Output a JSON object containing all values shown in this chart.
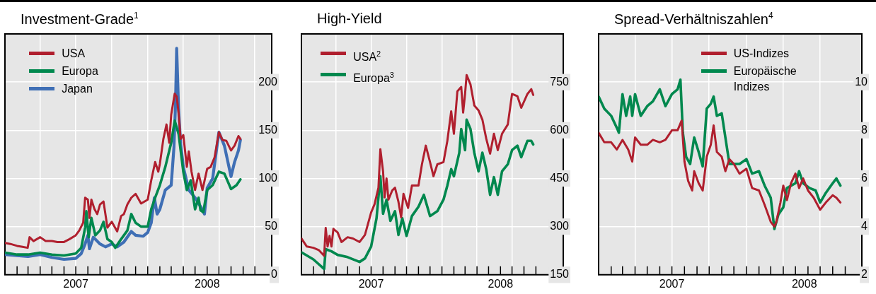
{
  "chart_data": [
    {
      "type": "line",
      "title": "Investment-Grade$^{1}$",
      "legend": "top left",
      "grid": true,
      "xlim": [
        "2007-01-01",
        "2008-11-13"
      ],
      "xticks": [
        {
          "value": "2007-02-01",
          "label": null
        },
        {
          "value": "2007-03-01",
          "label": null
        },
        {
          "value": "2007-04-01",
          "label": null
        },
        {
          "value": "2007-05-01",
          "label": null
        },
        {
          "value": "2007-06-01",
          "label": null
        },
        {
          "value": "2007-07-01",
          "label": "2007"
        },
        {
          "value": "2007-08-01",
          "label": null
        },
        {
          "value": "2007-09-01",
          "label": null
        },
        {
          "value": "2007-10-01",
          "label": null
        },
        {
          "value": "2007-11-01",
          "label": null
        },
        {
          "value": "2007-12-01",
          "label": null
        },
        {
          "value": "2008-01-01",
          "label": null
        },
        {
          "value": "2008-02-01",
          "label": null
        },
        {
          "value": "2008-03-01",
          "label": null
        },
        {
          "value": "2008-04-01",
          "label": null
        },
        {
          "value": "2008-05-01",
          "label": null
        },
        {
          "value": "2008-06-01",
          "label": "2008"
        },
        {
          "value": "2008-07-01",
          "label": null
        },
        {
          "value": "2008-08-01",
          "label": null
        },
        {
          "value": "2008-09-01",
          "label": null
        },
        {
          "value": "2008-10-01",
          "label": null
        }
      ],
      "ylim": [
        0,
        250
      ],
      "yticks": [
        0,
        50,
        100,
        150,
        200
      ],
      "series": [
        {
          "name": "USA",
          "color": "#b01f2e",
          "x": [
            "2007-01-01",
            "2007-01-15",
            "2007-02-01",
            "2007-02-15",
            "2007-02-28",
            "2007-03-05",
            "2007-03-15",
            "2007-04-01",
            "2007-04-15",
            "2007-05-01",
            "2007-05-15",
            "2007-06-01",
            "2007-06-15",
            "2007-07-01",
            "2007-07-10",
            "2007-07-20",
            "2007-07-25",
            "2007-08-01",
            "2007-08-05",
            "2007-08-10",
            "2007-08-18",
            "2007-08-25",
            "2007-09-01",
            "2007-09-10",
            "2007-09-20",
            "2007-10-01",
            "2007-10-15",
            "2007-10-25",
            "2007-11-01",
            "2007-11-10",
            "2007-11-20",
            "2007-12-01",
            "2007-12-15",
            "2008-01-01",
            "2008-01-10",
            "2008-01-20",
            "2008-01-28",
            "2008-02-01",
            "2008-02-10",
            "2008-02-18",
            "2008-02-25",
            "2008-03-01",
            "2008-03-10",
            "2008-03-15",
            "2008-03-20",
            "2008-03-25",
            "2008-04-01",
            "2008-04-10",
            "2008-04-15",
            "2008-04-22",
            "2008-05-01",
            "2008-05-10",
            "2008-05-20",
            "2008-06-01",
            "2008-06-10",
            "2008-06-20",
            "2008-07-01",
            "2008-07-10",
            "2008-07-20",
            "2008-08-01",
            "2008-08-10",
            "2008-08-20",
            "2008-08-25"
          ],
          "values": [
            33,
            32,
            30,
            29,
            28,
            39,
            35,
            39,
            35,
            35,
            34,
            34,
            37,
            41,
            46,
            54,
            80,
            78,
            59,
            78,
            68,
            63,
            73,
            76,
            49,
            55,
            45,
            61,
            63,
            73,
            80,
            84,
            74,
            78,
            98,
            117,
            107,
            115,
            141,
            156,
            137,
            166,
            188,
            185,
            168,
            141,
            145,
            112,
            128,
            107,
            88,
            105,
            88,
            110,
            112,
            122,
            148,
            140,
            139,
            129,
            134,
            144,
            141
          ]
        },
        {
          "name": "Europa",
          "color": "#00884e",
          "x": [
            "2007-01-01",
            "2007-02-01",
            "2007-03-01",
            "2007-04-01",
            "2007-05-01",
            "2007-06-01",
            "2007-07-01",
            "2007-07-15",
            "2007-07-25",
            "2007-07-28",
            "2007-08-03",
            "2007-08-10",
            "2007-08-20",
            "2007-09-01",
            "2007-09-10",
            "2007-09-20",
            "2007-10-01",
            "2007-10-10",
            "2007-10-25",
            "2007-11-10",
            "2007-11-20",
            "2007-12-01",
            "2007-12-15",
            "2008-01-01",
            "2008-01-10",
            "2008-01-20",
            "2008-02-01",
            "2008-02-15",
            "2008-03-01",
            "2008-03-10",
            "2008-03-20",
            "2008-04-01",
            "2008-04-10",
            "2008-04-20",
            "2008-05-01",
            "2008-05-10",
            "2008-05-15",
            "2008-05-22",
            "2008-06-01",
            "2008-06-15",
            "2008-07-01",
            "2008-07-15",
            "2008-08-01",
            "2008-08-15",
            "2008-08-25"
          ],
          "values": [
            23,
            21,
            21,
            23,
            21,
            20,
            22,
            28,
            49,
            66,
            39,
            59,
            41,
            46,
            55,
            37,
            34,
            28,
            37,
            46,
            63,
            54,
            50,
            50,
            68,
            80,
            93,
            112,
            137,
            160,
            146,
            107,
            88,
            98,
            68,
            80,
            67,
            65,
            88,
            93,
            107,
            105,
            89,
            93,
            99
          ]
        },
        {
          "name": "Japan",
          "color": "#3f6fb5",
          "x": [
            "2007-01-01",
            "2007-02-01",
            "2007-03-01",
            "2007-04-01",
            "2007-05-01",
            "2007-06-01",
            "2007-07-01",
            "2007-07-15",
            "2007-07-25",
            "2007-08-01",
            "2007-08-05",
            "2007-08-15",
            "2007-09-01",
            "2007-09-15",
            "2007-10-01",
            "2007-10-15",
            "2007-11-01",
            "2007-11-20",
            "2007-12-01",
            "2007-12-20",
            "2008-01-01",
            "2008-01-10",
            "2008-01-18",
            "2008-01-25",
            "2008-02-01",
            "2008-02-15",
            "2008-03-01",
            "2008-03-08",
            "2008-03-12",
            "2008-03-15",
            "2008-03-20",
            "2008-03-25",
            "2008-04-01",
            "2008-04-15",
            "2008-05-01",
            "2008-05-15",
            "2008-05-25",
            "2008-06-01",
            "2008-06-15",
            "2008-07-01",
            "2008-07-15",
            "2008-08-01",
            "2008-08-10",
            "2008-08-20",
            "2008-08-25"
          ],
          "values": [
            21,
            20,
            19,
            21,
            18,
            16,
            17,
            22,
            32,
            41,
            27,
            39,
            32,
            29,
            32,
            29,
            34,
            45,
            41,
            40,
            44,
            54,
            80,
            63,
            68,
            88,
            93,
            132,
            176,
            235,
            171,
            137,
            112,
            88,
            80,
            71,
            63,
            90,
            100,
            148,
            134,
            102,
            117,
            129,
            140
          ]
        }
      ]
    },
    {
      "type": "line",
      "title": "High-Yield",
      "legend": "top left",
      "grid": true,
      "xlim": [
        "2007-01-01",
        "2008-11-11"
      ],
      "xticks": [
        {
          "value": "2007-02-01",
          "label": null
        },
        {
          "value": "2007-03-01",
          "label": null
        },
        {
          "value": "2007-04-01",
          "label": null
        },
        {
          "value": "2007-05-01",
          "label": null
        },
        {
          "value": "2007-06-01",
          "label": null
        },
        {
          "value": "2007-07-01",
          "label": "2007"
        },
        {
          "value": "2007-08-01",
          "label": null
        },
        {
          "value": "2007-09-01",
          "label": null
        },
        {
          "value": "2007-10-01",
          "label": null
        },
        {
          "value": "2007-11-01",
          "label": null
        },
        {
          "value": "2007-12-01",
          "label": null
        },
        {
          "value": "2008-01-01",
          "label": null
        },
        {
          "value": "2008-02-01",
          "label": null
        },
        {
          "value": "2008-03-01",
          "label": null
        },
        {
          "value": "2008-04-01",
          "label": null
        },
        {
          "value": "2008-05-01",
          "label": null
        },
        {
          "value": "2008-06-01",
          "label": "2008"
        },
        {
          "value": "2008-07-01",
          "label": null
        },
        {
          "value": "2008-08-01",
          "label": null
        },
        {
          "value": "2008-09-01",
          "label": null
        }
      ],
      "ylim": [
        150,
        900
      ],
      "yticks": [
        150,
        300,
        450,
        600,
        750
      ],
      "series": [
        {
          "name": "USA$^{2}$",
          "color": "#b01f2e",
          "x": [
            "2007-01-01",
            "2007-01-15",
            "2007-02-01",
            "2007-02-15",
            "2007-03-01",
            "2007-03-05",
            "2007-03-10",
            "2007-03-15",
            "2007-03-20",
            "2007-03-25",
            "2007-04-05",
            "2007-04-15",
            "2007-05-01",
            "2007-05-15",
            "2007-06-01",
            "2007-06-15",
            "2007-07-01",
            "2007-07-10",
            "2007-07-20",
            "2007-07-25",
            "2007-08-01",
            "2007-08-05",
            "2007-08-10",
            "2007-08-15",
            "2007-08-25",
            "2007-09-01",
            "2007-09-10",
            "2007-09-17",
            "2007-09-23",
            "2007-10-05",
            "2007-10-15",
            "2007-11-01",
            "2007-11-10",
            "2007-11-20",
            "2007-12-01",
            "2007-12-10",
            "2007-12-20",
            "2008-01-05",
            "2008-01-15",
            "2008-01-25",
            "2008-02-01",
            "2008-02-10",
            "2008-02-20",
            "2008-02-25",
            "2008-03-01",
            "2008-03-05",
            "2008-03-15",
            "2008-03-25",
            "2008-04-05",
            "2008-04-15",
            "2008-04-25",
            "2008-05-05",
            "2008-05-15",
            "2008-05-25",
            "2008-06-05",
            "2008-06-20",
            "2008-07-01",
            "2008-07-15",
            "2008-07-25",
            "2008-08-10",
            "2008-08-20",
            "2008-08-25"
          ],
          "values": [
            263,
            238,
            234,
            227,
            209,
            296,
            238,
            271,
            238,
            293,
            282,
            252,
            267,
            263,
            252,
            274,
            344,
            370,
            421,
            541,
            472,
            391,
            450,
            384,
            413,
            421,
            377,
            329,
            402,
            358,
            428,
            428,
            494,
            552,
            501,
            457,
            494,
            501,
            567,
            659,
            589,
            721,
            735,
            655,
            713,
            772,
            743,
            677,
            662,
            633,
            574,
            527,
            589,
            538,
            589,
            618,
            713,
            706,
            670,
            713,
            728,
            710
          ]
        },
        {
          "name": "Europa$^{3}$",
          "color": "#00884e",
          "x": [
            "2007-01-01",
            "2007-02-01",
            "2007-03-01",
            "2007-03-05",
            "2007-03-20",
            "2007-04-05",
            "2007-05-01",
            "2007-06-01",
            "2007-06-15",
            "2007-07-01",
            "2007-07-15",
            "2007-07-25",
            "2007-08-01",
            "2007-08-10",
            "2007-08-20",
            "2007-09-01",
            "2007-09-10",
            "2007-09-20",
            "2007-10-01",
            "2007-10-15",
            "2007-11-01",
            "2007-11-15",
            "2007-12-01",
            "2007-12-20",
            "2008-01-05",
            "2008-01-15",
            "2008-01-25",
            "2008-02-01",
            "2008-02-15",
            "2008-02-20",
            "2008-03-01",
            "2008-03-05",
            "2008-03-15",
            "2008-03-25",
            "2008-04-05",
            "2008-04-15",
            "2008-04-25",
            "2008-05-05",
            "2008-05-15",
            "2008-05-25",
            "2008-06-05",
            "2008-06-20",
            "2008-07-01",
            "2008-07-15",
            "2008-07-25",
            "2008-08-10",
            "2008-08-20",
            "2008-08-25"
          ],
          "values": [
            220,
            198,
            168,
            230,
            223,
            212,
            205,
            190,
            201,
            238,
            326,
            457,
            340,
            384,
            318,
            348,
            274,
            326,
            271,
            333,
            362,
            399,
            333,
            348,
            384,
            428,
            479,
            457,
            530,
            604,
            538,
            633,
            604,
            530,
            472,
            530,
            479,
            399,
            454,
            399,
            472,
            494,
            538,
            552,
            516,
            567,
            567,
            556
          ]
        }
      ]
    },
    {
      "type": "line",
      "title": "Spread-Verhältniszahlen$^{4}$",
      "legend": "top",
      "grid": true,
      "xlim": [
        "2007-01-01",
        "2008-10-12"
      ],
      "xticks": [
        {
          "value": "2007-02-01",
          "label": null
        },
        {
          "value": "2007-03-01",
          "label": null
        },
        {
          "value": "2007-04-01",
          "label": null
        },
        {
          "value": "2007-05-01",
          "label": null
        },
        {
          "value": "2007-06-01",
          "label": null
        },
        {
          "value": "2007-07-01",
          "label": "2007"
        },
        {
          "value": "2007-08-01",
          "label": null
        },
        {
          "value": "2007-09-01",
          "label": null
        },
        {
          "value": "2007-10-01",
          "label": null
        },
        {
          "value": "2007-11-01",
          "label": null
        },
        {
          "value": "2007-12-01",
          "label": null
        },
        {
          "value": "2008-01-01",
          "label": null
        },
        {
          "value": "2008-02-01",
          "label": null
        },
        {
          "value": "2008-03-01",
          "label": null
        },
        {
          "value": "2008-04-01",
          "label": null
        },
        {
          "value": "2008-05-01",
          "label": null
        },
        {
          "value": "2008-05-23",
          "label": "2008"
        },
        {
          "value": "2008-06-01",
          "label": null
        },
        {
          "value": "2008-07-01",
          "label": null
        },
        {
          "value": "2008-08-01",
          "label": null
        },
        {
          "value": "2008-09-01",
          "label": null
        }
      ],
      "ylim": [
        2,
        12
      ],
      "yticks": [
        2,
        4,
        6,
        8,
        10
      ],
      "series": [
        {
          "name": "US-Indizes",
          "color": "#b01f2e",
          "x": [
            "2007-01-01",
            "2007-01-15",
            "2007-02-01",
            "2007-02-15",
            "2007-03-01",
            "2007-03-15",
            "2007-03-25",
            "2007-04-01",
            "2007-04-15",
            "2007-05-01",
            "2007-05-15",
            "2007-06-01",
            "2007-06-15",
            "2007-07-01",
            "2007-07-15",
            "2007-07-25",
            "2007-08-01",
            "2007-08-10",
            "2007-08-20",
            "2007-08-25",
            "2007-09-05",
            "2007-09-15",
            "2007-09-25",
            "2007-10-05",
            "2007-10-12",
            "2007-10-20",
            "2007-11-01",
            "2007-11-10",
            "2007-11-20",
            "2007-12-01",
            "2007-12-15",
            "2008-01-01",
            "2008-01-15",
            "2008-02-01",
            "2008-02-15",
            "2008-03-01",
            "2008-03-10",
            "2008-03-15",
            "2008-03-25",
            "2008-04-01",
            "2008-04-10",
            "2008-04-20",
            "2008-05-01",
            "2008-05-10",
            "2008-05-20",
            "2008-06-01",
            "2008-06-15",
            "2008-07-01",
            "2008-07-15",
            "2008-08-01",
            "2008-08-10",
            "2008-08-20"
          ],
          "values": [
            7.9,
            7.5,
            7.5,
            7.2,
            7.6,
            7.2,
            6.7,
            7.7,
            7.4,
            7.4,
            7.6,
            7.5,
            7.6,
            8.0,
            8.0,
            8.4,
            6.7,
            5.9,
            5.5,
            6.3,
            5.8,
            5.5,
            6.9,
            7.4,
            8.2,
            7.1,
            6.9,
            6.3,
            6.8,
            6.6,
            6.2,
            6.4,
            5.6,
            5.5,
            4.9,
            4.2,
            4.0,
            4.2,
            5.0,
            5.7,
            5.1,
            5.8,
            6.2,
            5.6,
            6.0,
            5.5,
            5.2,
            4.7,
            5.0,
            5.3,
            5.2,
            5.0
          ]
        },
        {
          "name": "Europäische Indizes",
          "color": "#00884e",
          "x": [
            "2007-01-01",
            "2007-01-15",
            "2007-02-01",
            "2007-02-15",
            "2007-02-20",
            "2007-03-01",
            "2007-03-10",
            "2007-03-20",
            "2007-03-25",
            "2007-04-01",
            "2007-04-15",
            "2007-05-01",
            "2007-05-15",
            "2007-06-01",
            "2007-06-15",
            "2007-07-01",
            "2007-07-15",
            "2007-07-22",
            "2007-07-28",
            "2007-08-05",
            "2007-08-15",
            "2007-08-25",
            "2007-09-05",
            "2007-09-15",
            "2007-09-25",
            "2007-10-05",
            "2007-10-12",
            "2007-10-20",
            "2007-11-01",
            "2007-11-10",
            "2007-11-20",
            "2007-12-01",
            "2007-12-15",
            "2008-01-01",
            "2008-01-15",
            "2008-02-01",
            "2008-02-15",
            "2008-03-01",
            "2008-03-10",
            "2008-03-20",
            "2008-04-01",
            "2008-04-10",
            "2008-05-01",
            "2008-05-10",
            "2008-05-20",
            "2008-06-05",
            "2008-06-20",
            "2008-07-01",
            "2008-07-15",
            "2008-08-01",
            "2008-08-10",
            "2008-08-20"
          ],
          "values": [
            9.4,
            8.9,
            8.6,
            8.1,
            7.9,
            9.5,
            8.6,
            9.4,
            8.6,
            9.5,
            8.6,
            9.0,
            9.2,
            9.7,
            9.0,
            9.5,
            9.7,
            10.1,
            7.9,
            6.9,
            6.6,
            7.7,
            7.1,
            6.5,
            8.9,
            9.1,
            9.4,
            8.6,
            8.7,
            7.7,
            6.6,
            6.6,
            6.6,
            6.8,
            6.2,
            6.3,
            5.7,
            5.2,
            3.9,
            4.5,
            4.8,
            5.6,
            5.8,
            6.3,
            5.8,
            5.6,
            5.5,
            5.0,
            5.4,
            5.8,
            6.0,
            5.7
          ]
        }
      ]
    }
  ]
}
